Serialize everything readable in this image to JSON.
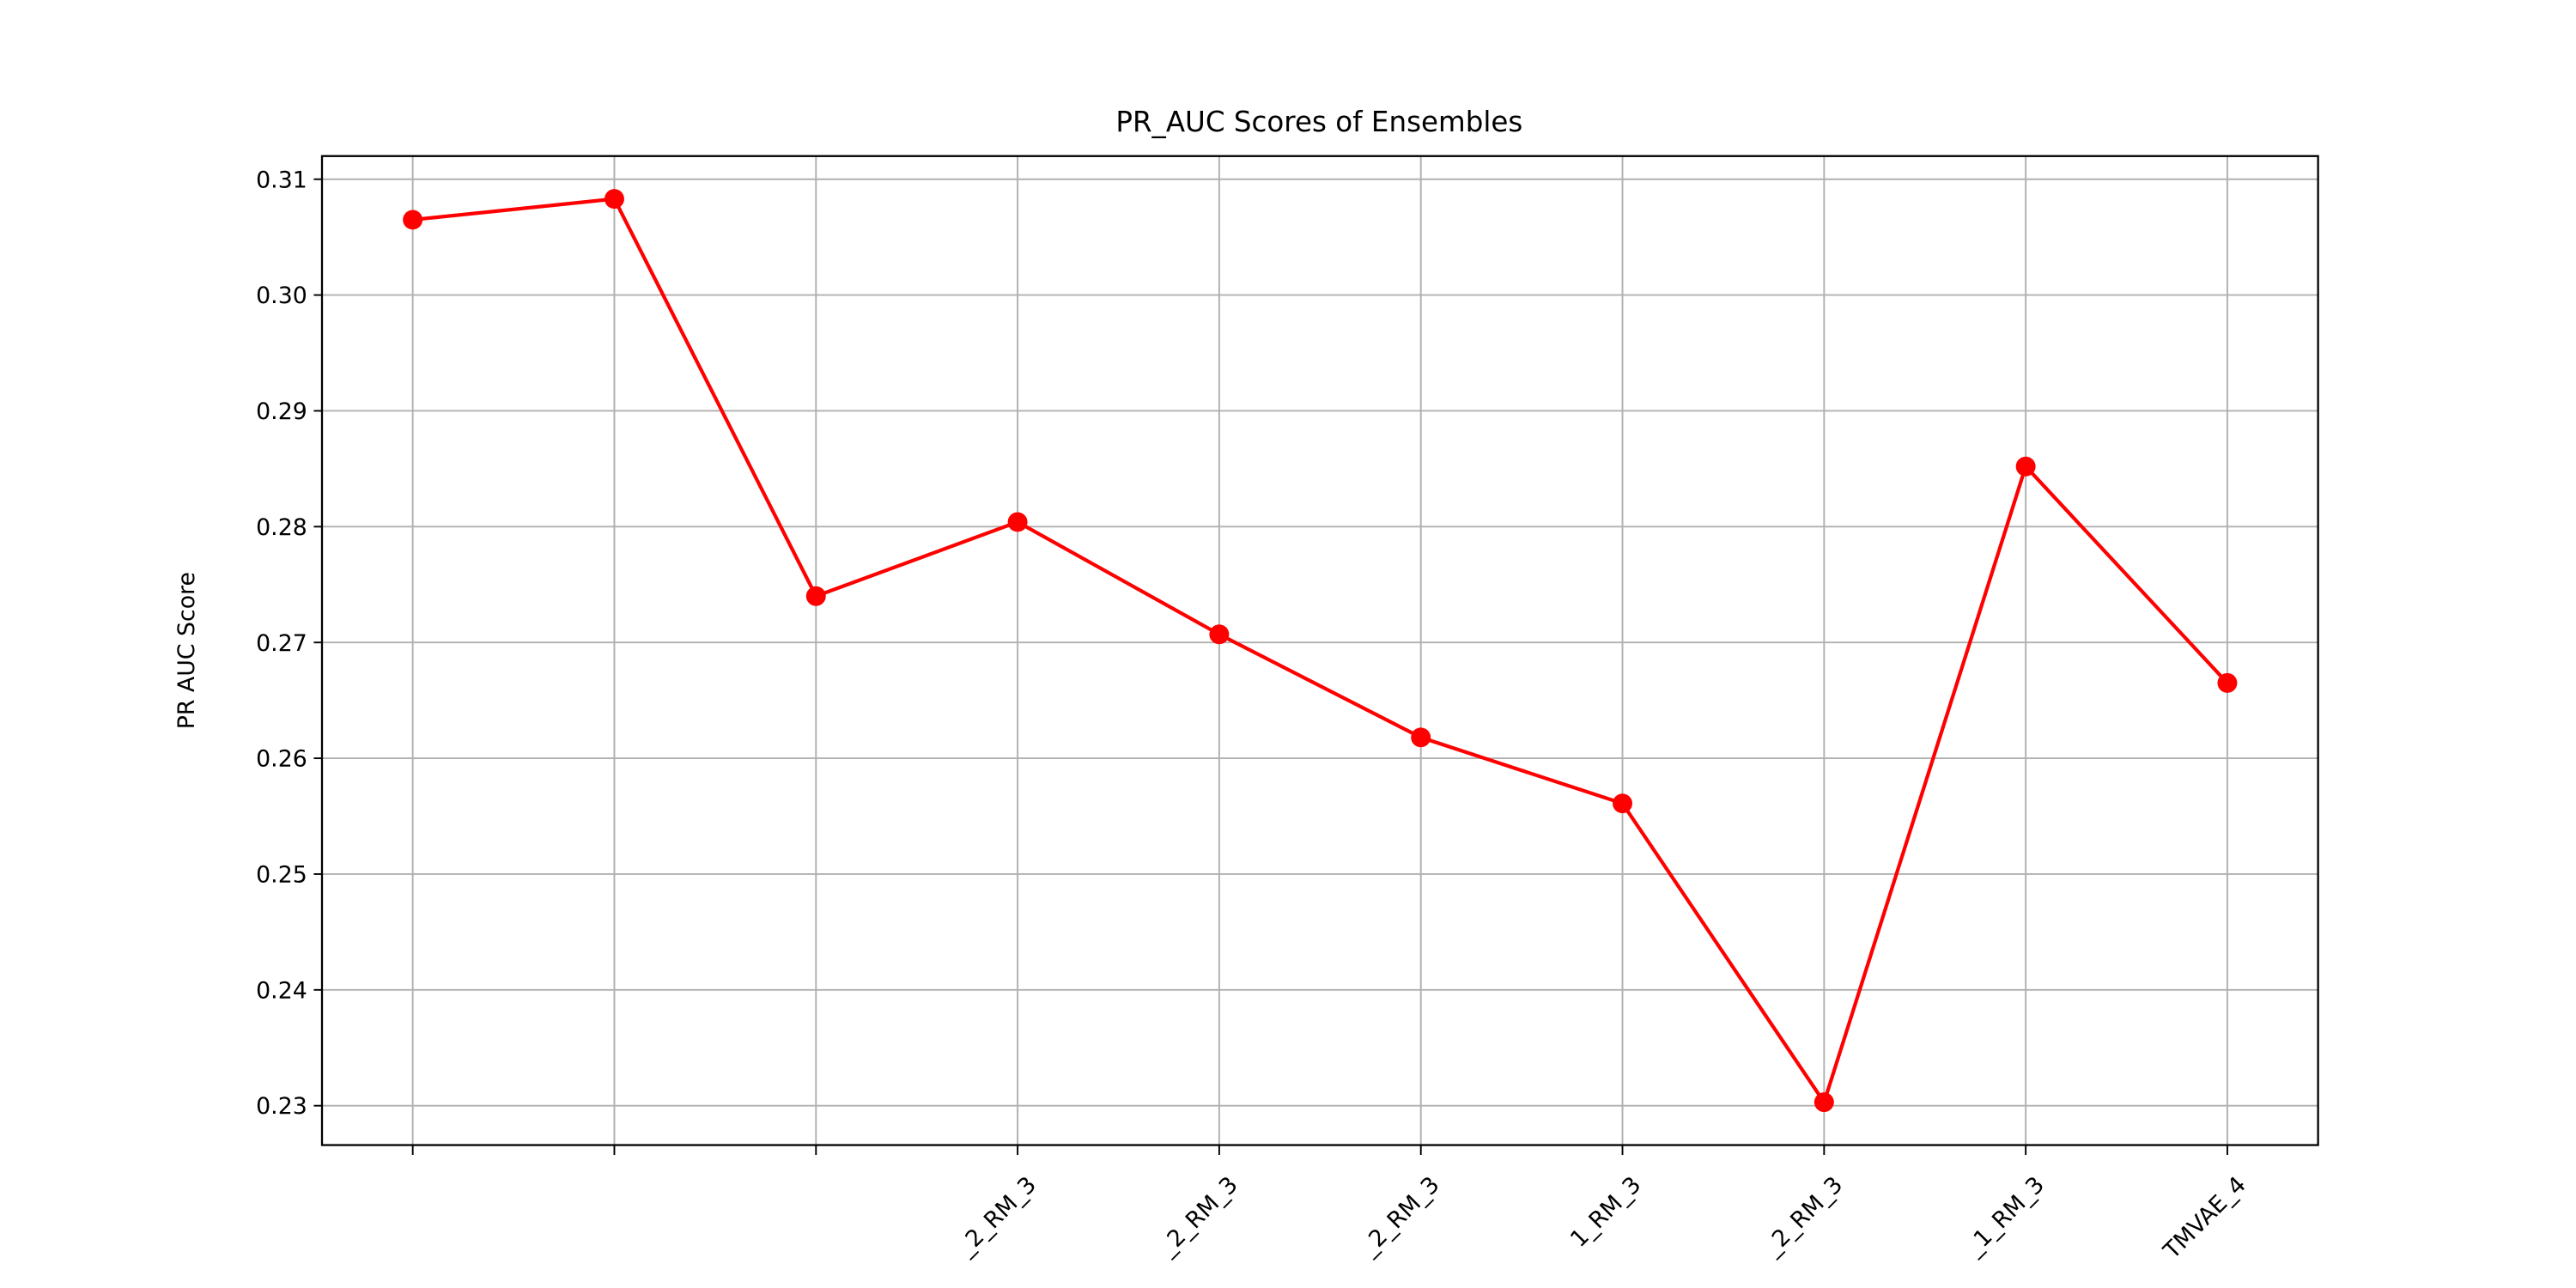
{
  "chart_data": {
    "type": "line",
    "title": "PR_AUC Scores of Ensembles",
    "y_label": "PR AUC Score",
    "categories": [
      null,
      null,
      null,
      "_2_RM_3",
      "_2_RM_3",
      "_2_RM_3",
      "1_RM_3",
      "_2_RM_3",
      "_1_RM_3",
      "TMVAE_4"
    ],
    "series": [
      {
        "name": "PR AUC",
        "color": "#ff0000",
        "values": [
          0.3065,
          0.3083,
          0.274,
          0.2804,
          0.2707,
          0.2618,
          0.2561,
          0.2303,
          0.2852,
          0.2665
        ]
      }
    ],
    "ylim": [
      0.2266,
      0.312
    ],
    "yticks": [
      0.23,
      0.24,
      0.25,
      0.26,
      0.27,
      0.28,
      0.29,
      {
        "value": 0.3,
        "label": "0.30"
      },
      0.31
    ],
    "grid": true
  }
}
